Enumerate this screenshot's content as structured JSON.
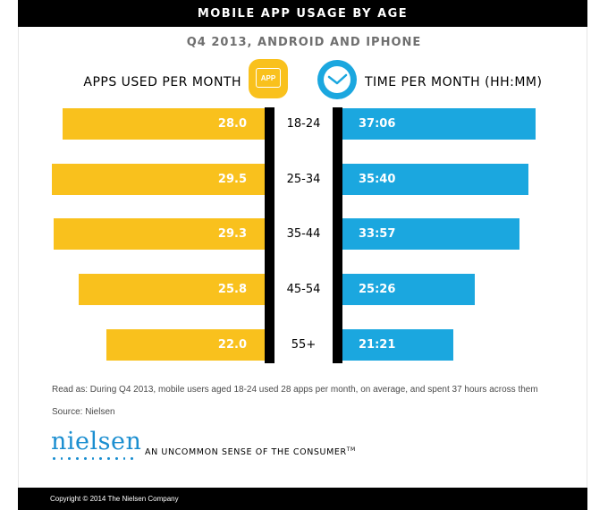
{
  "header": {
    "title": "MOBILE APP USAGE BY AGE",
    "subtitle": "Q4 2013, ANDROID AND IPHONE",
    "left_label": "APPS USED PER MONTH",
    "right_label": "TIME PER MONTH (HH:MM)",
    "app_icon_text": "APP"
  },
  "chart_data": {
    "type": "bar",
    "orientation": "horizontal-diverging",
    "categories": [
      "18-24",
      "25-34",
      "35-44",
      "45-54",
      "55+"
    ],
    "series": [
      {
        "name": "APPS USED PER MONTH",
        "values": [
          28.0,
          29.5,
          29.3,
          25.8,
          22.0
        ],
        "labels": [
          "28.0",
          "29.5",
          "29.3",
          "25.8",
          "22.0"
        ],
        "color": "#f9c11d",
        "side": "left"
      },
      {
        "name": "TIME PER MONTH (HH:MM)",
        "values_hours": [
          37.1,
          35.667,
          33.95,
          25.433,
          21.35
        ],
        "labels": [
          "37:06",
          "35:40",
          "33:57",
          "25:26",
          "21:21"
        ],
        "color": "#1ba7df",
        "side": "right"
      }
    ],
    "legend": "none",
    "grid": false
  },
  "notes": {
    "read_as": "Read as: During Q4 2013, mobile users aged 18-24 used 28 apps per month, on average, and spent 37 hours across them",
    "source": "Source: Nielsen"
  },
  "branding": {
    "logo": "nielsen",
    "tagline": "AN UNCOMMON SENSE OF THE CONSUMER",
    "tm": "TM",
    "copyright": "Copyright © 2014 The Nielsen Company"
  },
  "colors": {
    "apps": "#f9c11d",
    "time": "#1ba7df",
    "brand": "#1a8ed0"
  }
}
